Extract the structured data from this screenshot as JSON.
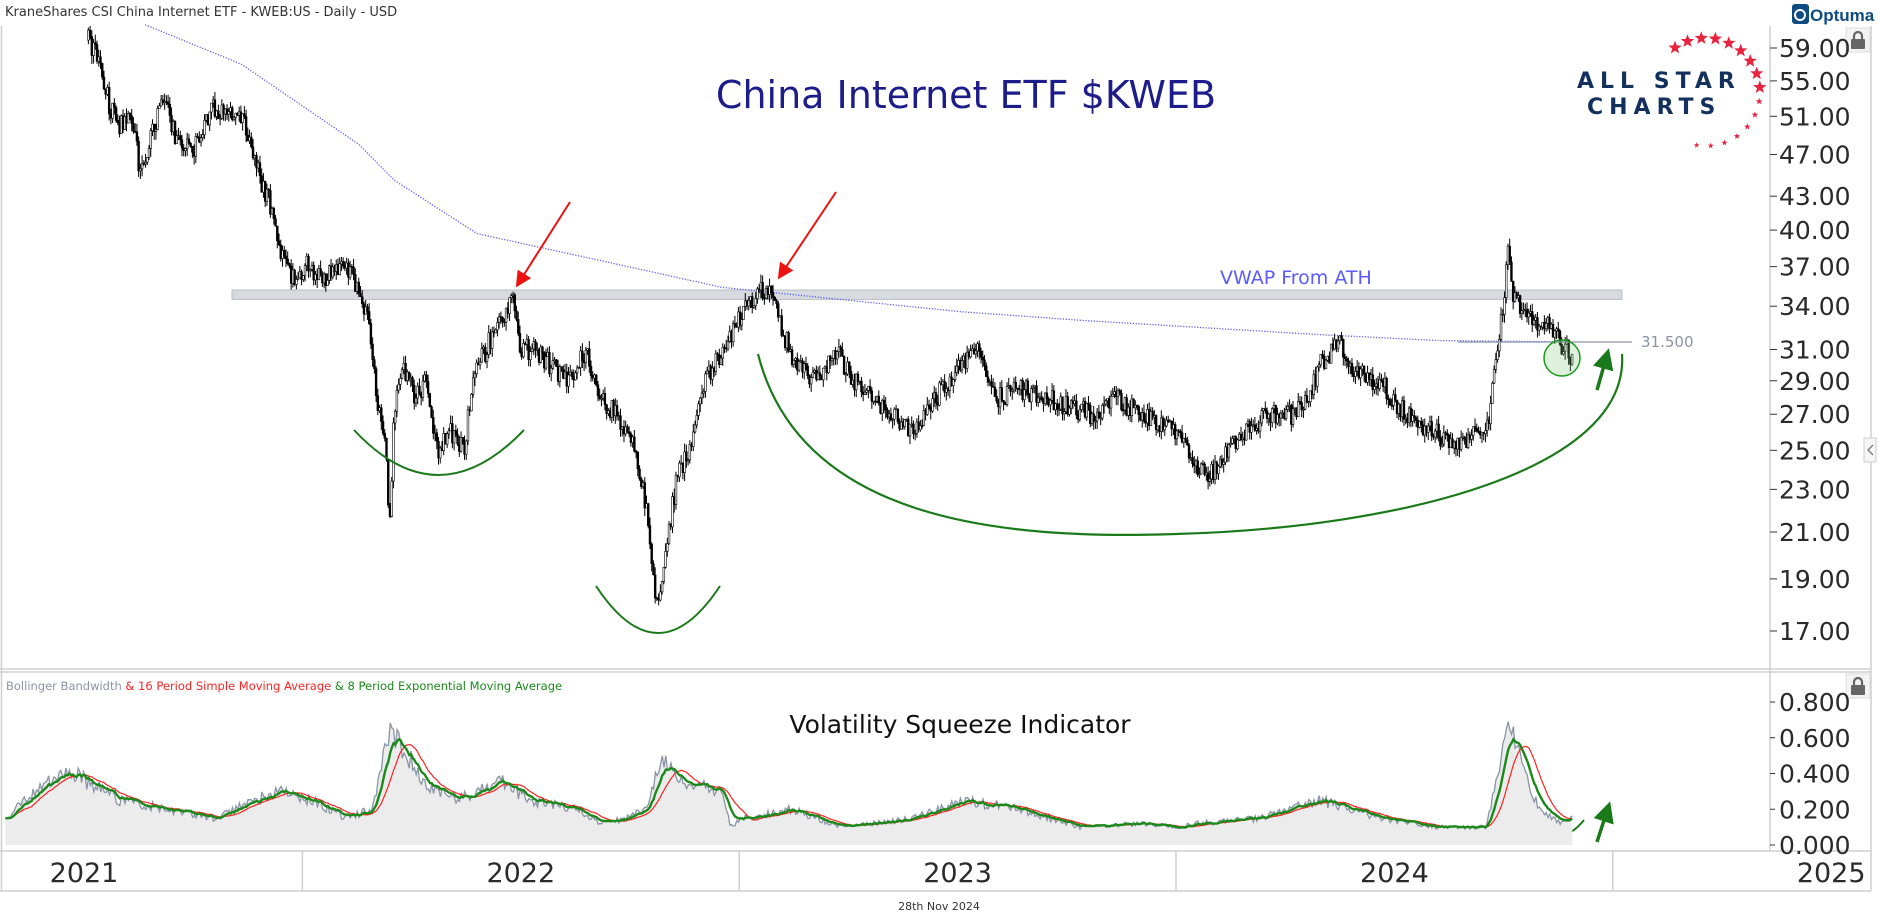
{
  "header": {
    "instrument": "KraneShares CSI China Internet ETF - KWEB:US - Daily - USD"
  },
  "branding": {
    "optuma": "Optuma",
    "logo_line1": "ALL STAR",
    "logo_line2": "CHARTS"
  },
  "footer": {
    "date": "28th Nov 2024"
  },
  "colors": {
    "title": "#1c1c8a",
    "vwap": "#5b5bff",
    "annotation_green": "#1a7a1a",
    "arrow_red": "#ee1111",
    "bbw": "#8a94a6",
    "sma": "#ff2222",
    "ema": "#1a8a1a"
  },
  "chart_data": [
    {
      "type": "candlestick",
      "title": "China Internet ETF $KWEB",
      "scale": "log",
      "ylim": [
        17,
        59
      ],
      "yticks": [
        "59.00",
        "55.00",
        "51.00",
        "47.00",
        "43.00",
        "40.00",
        "37.00",
        "34.00",
        "31.00",
        "29.00",
        "27.00",
        "25.00",
        "23.00",
        "21.00",
        "19.00",
        "17.00"
      ],
      "xticks": [
        "2021",
        "2022",
        "2023",
        "2024",
        "2025"
      ],
      "xlim_years": [
        2020.74,
        2025.23
      ],
      "close_keypoints": [
        [
          2021.51,
          60
        ],
        [
          2021.53,
          58
        ],
        [
          2021.56,
          52
        ],
        [
          2021.58,
          50
        ],
        [
          2021.61,
          51
        ],
        [
          2021.63,
          45
        ],
        [
          2021.66,
          50
        ],
        [
          2021.68,
          53
        ],
        [
          2021.71,
          49
        ],
        [
          2021.75,
          47
        ],
        [
          2021.77,
          50
        ],
        [
          2021.8,
          52
        ],
        [
          2021.84,
          51
        ],
        [
          2021.87,
          50
        ],
        [
          2021.9,
          45
        ],
        [
          2021.93,
          42
        ],
        [
          2021.95,
          38
        ],
        [
          2021.98,
          36
        ],
        [
          2022.01,
          37
        ],
        [
          2022.05,
          36
        ],
        [
          2022.09,
          37
        ],
        [
          2022.12,
          36
        ],
        [
          2022.15,
          33
        ],
        [
          2022.17,
          28
        ],
        [
          2022.19,
          25
        ],
        [
          2022.2,
          21.5
        ],
        [
          2022.21,
          27
        ],
        [
          2022.23,
          30
        ],
        [
          2022.26,
          28
        ],
        [
          2022.28,
          29
        ],
        [
          2022.31,
          25
        ],
        [
          2022.34,
          26
        ],
        [
          2022.37,
          25
        ],
        [
          2022.39,
          29
        ],
        [
          2022.42,
          31
        ],
        [
          2022.45,
          33
        ],
        [
          2022.48,
          34.5
        ],
        [
          2022.5,
          31
        ],
        [
          2022.53,
          31
        ],
        [
          2022.57,
          30
        ],
        [
          2022.61,
          29
        ],
        [
          2022.65,
          31
        ],
        [
          2022.68,
          28
        ],
        [
          2022.72,
          27
        ],
        [
          2022.76,
          25
        ],
        [
          2022.79,
          22
        ],
        [
          2022.81,
          17.8
        ],
        [
          2022.83,
          20
        ],
        [
          2022.86,
          24
        ],
        [
          2022.89,
          25
        ],
        [
          2022.91,
          28
        ],
        [
          2022.94,
          30
        ],
        [
          2022.97,
          31
        ],
        [
          2023.01,
          34
        ],
        [
          2023.04,
          35
        ],
        [
          2023.07,
          35.5
        ],
        [
          2023.09,
          33
        ],
        [
          2023.13,
          30
        ],
        [
          2023.18,
          29
        ],
        [
          2023.22,
          31
        ],
        [
          2023.26,
          29
        ],
        [
          2023.31,
          28
        ],
        [
          2023.35,
          27
        ],
        [
          2023.4,
          26
        ],
        [
          2023.45,
          28
        ],
        [
          2023.51,
          30
        ],
        [
          2023.55,
          31
        ],
        [
          2023.59,
          28
        ],
        [
          2023.64,
          28.5
        ],
        [
          2023.7,
          28
        ],
        [
          2023.75,
          27.5
        ],
        [
          2023.81,
          27
        ],
        [
          2023.86,
          28
        ],
        [
          2023.92,
          27
        ],
        [
          2023.97,
          26.5
        ],
        [
          2024.01,
          25.5
        ],
        [
          2024.04,
          24.5
        ],
        [
          2024.07,
          23.5
        ],
        [
          2024.1,
          24.5
        ],
        [
          2024.14,
          25.5
        ],
        [
          2024.18,
          26.5
        ],
        [
          2024.22,
          27
        ],
        [
          2024.27,
          27
        ],
        [
          2024.3,
          28
        ],
        [
          2024.33,
          30
        ],
        [
          2024.36,
          31
        ],
        [
          2024.37,
          32
        ],
        [
          2024.4,
          30
        ],
        [
          2024.44,
          29
        ],
        [
          2024.48,
          28.5
        ],
        [
          2024.51,
          27.5
        ],
        [
          2024.55,
          26.5
        ],
        [
          2024.59,
          26
        ],
        [
          2024.62,
          25.5
        ],
        [
          2024.65,
          25.5
        ],
        [
          2024.69,
          26
        ],
        [
          2024.72,
          27
        ],
        [
          2024.73,
          30
        ],
        [
          2024.75,
          34
        ],
        [
          2024.76,
          38
        ],
        [
          2024.77,
          35
        ],
        [
          2024.79,
          34
        ],
        [
          2024.81,
          33
        ],
        [
          2024.85,
          33
        ],
        [
          2024.88,
          31.5
        ],
        [
          2024.91,
          30.5
        ]
      ],
      "vwap": {
        "label": "VWAP From ATH",
        "points": [
          [
            2021.64,
            62
          ],
          [
            2021.86,
            57
          ],
          [
            2022.13,
            48
          ],
          [
            2022.21,
            44.5
          ],
          [
            2022.4,
            39.7
          ],
          [
            2022.68,
            37.5
          ],
          [
            2022.96,
            35.4
          ],
          [
            2023.23,
            34.5
          ],
          [
            2023.51,
            33.6
          ],
          [
            2023.78,
            33
          ],
          [
            2024.05,
            32.5
          ],
          [
            2024.33,
            32
          ],
          [
            2024.6,
            31.6
          ],
          [
            2024.91,
            31.5
          ]
        ]
      },
      "resistance_zone": {
        "low": 34.5,
        "high": 35.2
      },
      "level_line": {
        "value": 31.5,
        "label": "31.500"
      }
    },
    {
      "type": "line",
      "title": "Volatility Squeeze Indicator",
      "legend": [
        {
          "text": "Bollinger Bandwidth",
          "color": "#8a94a6"
        },
        {
          "text": " & 16 Period Simple Moving Average",
          "color": "#ff2222"
        },
        {
          "text": " & 8 Period Exponential Moving Average",
          "color": "#1a8a1a"
        }
      ],
      "ylim": [
        0,
        0.8
      ],
      "yticks": [
        "0.800",
        "0.600",
        "0.400",
        "0.200",
        "0.000"
      ],
      "bbw_keypoints": [
        [
          2021.32,
          0.15
        ],
        [
          2021.39,
          0.3
        ],
        [
          2021.46,
          0.42
        ],
        [
          2021.51,
          0.35
        ],
        [
          2021.58,
          0.25
        ],
        [
          2021.69,
          0.2
        ],
        [
          2021.8,
          0.15
        ],
        [
          2021.86,
          0.22
        ],
        [
          2021.94,
          0.3
        ],
        [
          2022.02,
          0.25
        ],
        [
          2022.1,
          0.15
        ],
        [
          2022.16,
          0.2
        ],
        [
          2022.2,
          0.65
        ],
        [
          2022.24,
          0.5
        ],
        [
          2022.28,
          0.35
        ],
        [
          2022.35,
          0.25
        ],
        [
          2022.46,
          0.35
        ],
        [
          2022.52,
          0.25
        ],
        [
          2022.63,
          0.2
        ],
        [
          2022.68,
          0.12
        ],
        [
          2022.74,
          0.15
        ],
        [
          2022.79,
          0.2
        ],
        [
          2022.82,
          0.48
        ],
        [
          2022.87,
          0.35
        ],
        [
          2022.96,
          0.3
        ],
        [
          2022.98,
          0.1
        ],
        [
          2023.01,
          0.15
        ],
        [
          2023.12,
          0.2
        ],
        [
          2023.23,
          0.1
        ],
        [
          2023.4,
          0.15
        ],
        [
          2023.51,
          0.25
        ],
        [
          2023.64,
          0.2
        ],
        [
          2023.78,
          0.1
        ],
        [
          2023.92,
          0.12
        ],
        [
          2024.0,
          0.1
        ],
        [
          2024.05,
          0.12
        ],
        [
          2024.19,
          0.15
        ],
        [
          2024.33,
          0.25
        ],
        [
          2024.47,
          0.15
        ],
        [
          2024.6,
          0.1
        ],
        [
          2024.71,
          0.1
        ],
        [
          2024.76,
          0.68
        ],
        [
          2024.8,
          0.4
        ],
        [
          2024.83,
          0.2
        ],
        [
          2024.88,
          0.13
        ],
        [
          2024.91,
          0.15
        ]
      ]
    }
  ]
}
